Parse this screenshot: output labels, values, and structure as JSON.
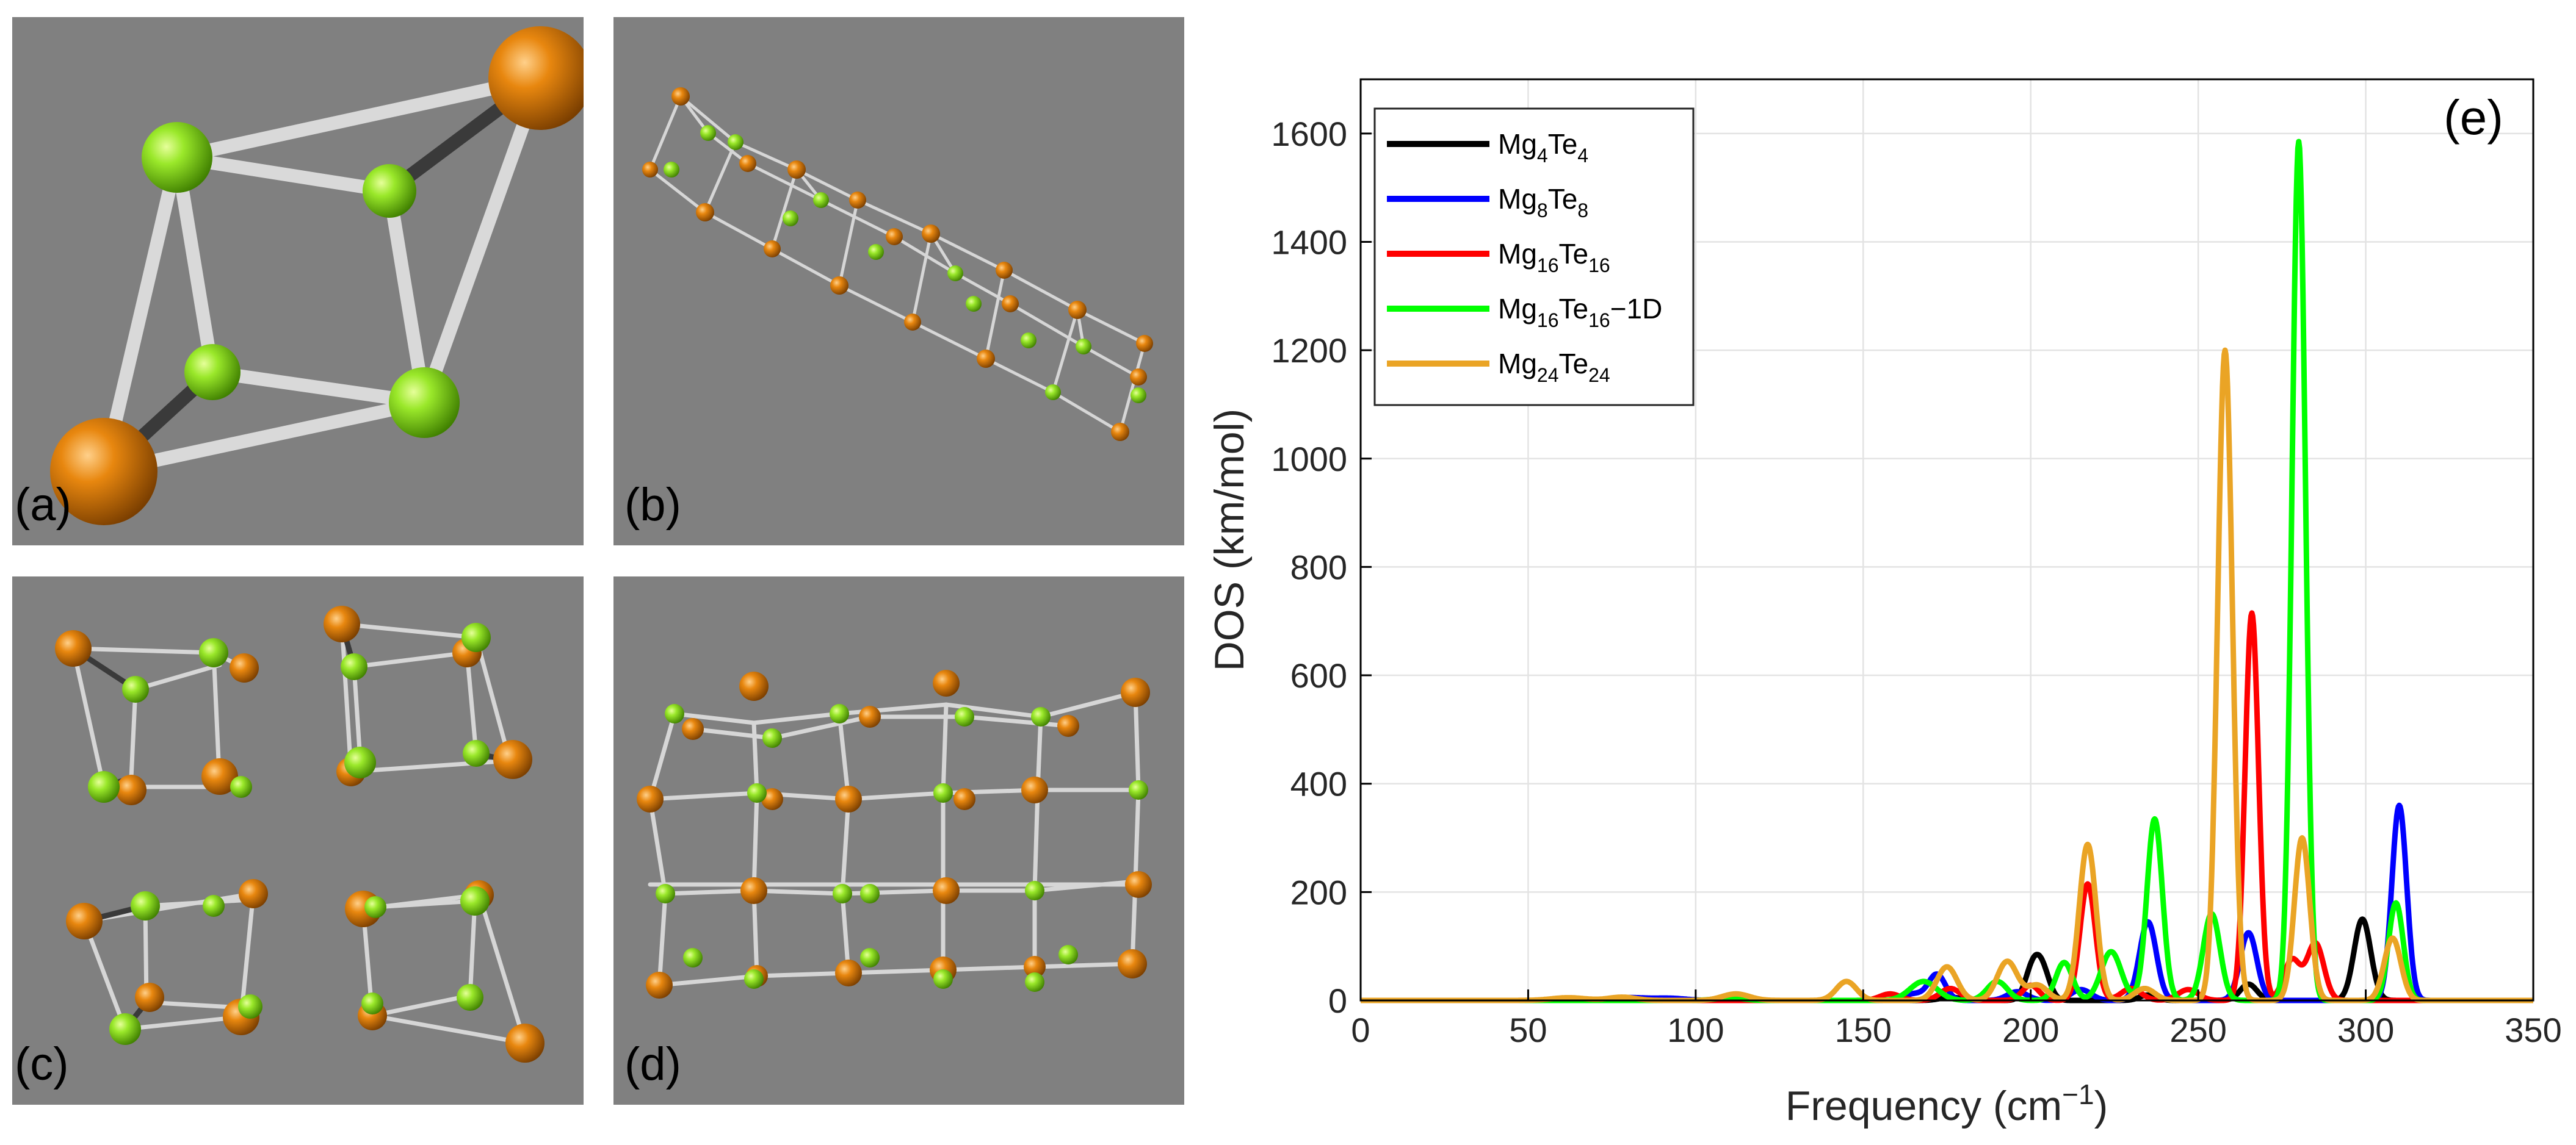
{
  "panels": {
    "a": {
      "label": "(a)"
    },
    "b": {
      "label": "(b)"
    },
    "c": {
      "label": "(c)"
    },
    "d": {
      "label": "(d)"
    }
  },
  "colors": {
    "panel_bg": "#808080",
    "mg_atom": "#8fe21a",
    "te_atom": "#e8870f",
    "bond_light": "#dcdcdc",
    "bond_dark": "#3a3a3a"
  },
  "chart_data": {
    "type": "line",
    "panel_label": "(e)",
    "xlabel": "Frequency (cm",
    "xlabel_sup": "−1",
    "xlabel_end": ")",
    "ylabel": "DOS (km/mol)",
    "xlim": [
      0,
      350
    ],
    "ylim": [
      0,
      1700
    ],
    "xticks": [
      0,
      50,
      100,
      150,
      200,
      250,
      300,
      350
    ],
    "yticks": [
      0,
      200,
      400,
      600,
      800,
      1000,
      1200,
      1400,
      1600
    ],
    "grid": true,
    "legend_position": "top-left",
    "series": [
      {
        "name": "Mg4Te4",
        "legend": {
          "base1": "Mg",
          "sub1": "4",
          "base2": "Te",
          "sub2": "4",
          "suffix": ""
        },
        "color": "#000000",
        "peaks": [
          [
            200.5,
            55,
            2.2
          ],
          [
            203.5,
            52,
            2.2
          ],
          [
            235,
            10,
            2.5
          ],
          [
            265,
            30,
            2.5
          ],
          [
            299,
            150,
            2.5
          ],
          [
            176,
            6,
            3
          ]
        ]
      },
      {
        "name": "Mg8Te8",
        "legend": {
          "base1": "Mg",
          "sub1": "8",
          "base2": "Te",
          "sub2": "8",
          "suffix": ""
        },
        "color": "#0000ff",
        "peaks": [
          [
            80,
            5,
            5
          ],
          [
            92,
            4,
            5
          ],
          [
            165,
            12,
            3
          ],
          [
            172,
            48,
            2.5
          ],
          [
            196,
            16,
            3
          ],
          [
            215,
            20,
            3
          ],
          [
            235,
            145,
            2.5
          ],
          [
            265,
            125,
            2.5
          ],
          [
            310,
            360,
            2.2
          ]
        ]
      },
      {
        "name": "Mg16Te16",
        "legend": {
          "base1": "Mg",
          "sub1": "16",
          "base2": "Te",
          "sub2": "16",
          "suffix": ""
        },
        "color": "#ff0000",
        "peaks": [
          [
            158,
            12,
            3
          ],
          [
            176,
            22,
            3
          ],
          [
            200,
            28,
            2.5
          ],
          [
            217,
            215,
            2.3
          ],
          [
            230,
            22,
            3
          ],
          [
            247,
            20,
            3
          ],
          [
            266,
            715,
            2.0
          ],
          [
            278,
            75,
            2.5
          ],
          [
            285,
            105,
            2.5
          ]
        ]
      },
      {
        "name": "Mg16Te16-1D",
        "legend": {
          "base1": "Mg",
          "sub1": "16",
          "base2": "Te",
          "sub2": "16",
          "suffix": "−1D"
        },
        "color": "#00ff00",
        "peaks": [
          [
            110,
            5,
            4
          ],
          [
            168,
            35,
            4
          ],
          [
            190,
            35,
            3
          ],
          [
            210,
            70,
            2.5
          ],
          [
            224,
            90,
            3
          ],
          [
            237,
            335,
            2.3
          ],
          [
            254,
            160,
            2.5
          ],
          [
            280,
            1585,
            2.0
          ],
          [
            309,
            180,
            2.2
          ]
        ]
      },
      {
        "name": "Mg24Te24",
        "legend": {
          "base1": "Mg",
          "sub1": "24",
          "base2": "Te",
          "sub2": "24",
          "suffix": ""
        },
        "color": "#eaa425",
        "peaks": [
          [
            62,
            5,
            5
          ],
          [
            78,
            6,
            4
          ],
          [
            112,
            12,
            4
          ],
          [
            145,
            35,
            3
          ],
          [
            175,
            62,
            3
          ],
          [
            193,
            72,
            3
          ],
          [
            202,
            28,
            3
          ],
          [
            217,
            288,
            2.5
          ],
          [
            234,
            22,
            3
          ],
          [
            258,
            1200,
            2.2
          ],
          [
            281,
            300,
            2.3
          ],
          [
            308,
            115,
            2.5
          ]
        ]
      }
    ]
  }
}
